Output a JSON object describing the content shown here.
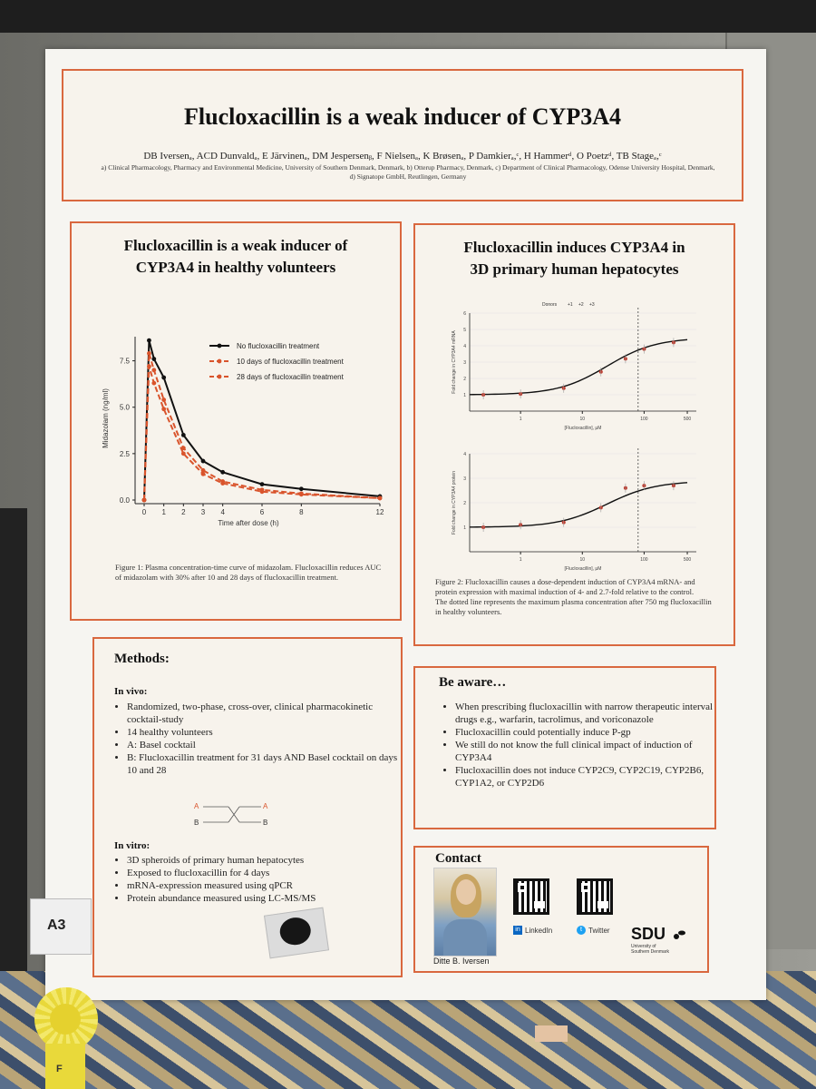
{
  "badge_text": "A3",
  "rosette_text": "F",
  "poster": {
    "title": "Flucloxacillin is a weak inducer of  CYP3A4",
    "authors": "DB Iversenₐ, ACD Dunvaldₐ, E Järvinenₐ, DM Jespersenᵦ, F Nielsenₐ, K Brøsenₐ, P Damkierₐ,ᶜ, H Hammerᵈ, O Poetzᵈ, TB Stageₐ,ᶜ",
    "affiliations": "a) Clinical Pharmacology, Pharmacy and Environmental Medicine, University of Southern Denmark, Denmark, b) Otterup Pharmacy, Denmark, c) Department of Clinical Pharmacology, Odense University Hospital, Denmark, d) Signatope GmbH, Reutlingen, Germany",
    "box1": {
      "heading_line1": "Flucloxacillin is a weak inducer of",
      "heading_line2": "CYP3A4 in healthy volunteers",
      "caption": "Figure 1: Plasma concentration-time curve of midazolam. Flucloxacillin reduces AUC of midazolam with 30% after 10 and 28 days of flucloxacillin treatment."
    },
    "box2": {
      "heading_line1": "Flucloxacillin induces CYP3A4 in",
      "heading_line2": "3D primary human hepatocytes",
      "caption_line1": "Figure 2: Flucloxacillin causes a dose-dependent induction of CYP3A4 mRNA- and protein expression with maximal induction of 4- and 2.7-fold relative to the control.",
      "caption_line2": "The dotted line represents the maximum plasma concentration after 750 mg flucloxacillin in healthy volunteers."
    },
    "methods": {
      "title": "Methods:",
      "invivo_title": "In vivo:",
      "invivo_items": [
        "Randomized, two-phase, cross-over, clinical pharmacokinetic cocktail-study",
        "14 healthy volunteers",
        "A: Basel cocktail",
        "B: Flucloxacillin treatment for 31 days AND Basel cocktail on days 10 and 28"
      ],
      "crossover_labels": {
        "a_left": "A",
        "b_left": "B",
        "a_right": "A",
        "b_right": "B"
      },
      "invitro_title": "In vitro:",
      "invitro_items": [
        "3D spheroids of primary human hepatocytes",
        "Exposed to flucloxacillin for 4 days",
        "mRNA-expression measured using qPCR",
        "Protein abundance measured using LC-MS/MS"
      ]
    },
    "aware": {
      "title": "Be aware…",
      "items": [
        "When prescribing flucloxacillin with narrow therapeutic interval drugs e.g., warfarin, tacrolimus, and voriconazole",
        "Flucloxacillin could potentially induce P-gp",
        "We still do not know the full clinical impact of induction of  CYP3A4",
        "Flucloxacillin does not induce CYP2C9, CYP2C19, CYP2B6, CYP1A2, or CYP2D6"
      ]
    },
    "contact": {
      "title": "Contact",
      "name": "Ditte B. Iversen",
      "linkedin": "LinkedIn",
      "twitter": "Twitter",
      "sdu_logo": "SDU",
      "sdu_sub1": "University of",
      "sdu_sub2": "Southern Denmark"
    }
  },
  "chart_data": [
    {
      "type": "line",
      "xlabel": "Time after dose (h)",
      "ylabel": "Midazolam (ng/ml)",
      "xticks": [
        "0",
        "1",
        "2",
        "3",
        "4",
        "6",
        "8",
        "12"
      ],
      "yticks": [
        "0.0",
        "2.5",
        "5.0",
        "7.5"
      ],
      "xlim": [
        0,
        12
      ],
      "ylim": [
        0,
        8.8
      ],
      "legend_position": "top-right",
      "series": [
        {
          "name": "No flucloxacillin treatment",
          "color": "#111111",
          "style": "solid",
          "x": [
            0,
            0.25,
            0.5,
            1,
            2,
            3,
            4,
            6,
            8,
            12
          ],
          "y": [
            0,
            8.6,
            7.6,
            6.6,
            3.5,
            2.1,
            1.5,
            0.85,
            0.6,
            0.2
          ]
        },
        {
          "name": "10 days of flucloxacillin treatment",
          "color": "#d9542c",
          "style": "dashed",
          "x": [
            0,
            0.25,
            0.5,
            1,
            2,
            3,
            4,
            6,
            8,
            12
          ],
          "y": [
            0,
            7.9,
            7.0,
            5.4,
            2.8,
            1.6,
            1.0,
            0.55,
            0.35,
            0.1
          ]
        },
        {
          "name": "28 days of flucloxacillin treatment",
          "color": "#d9542c",
          "style": "dashed",
          "x": [
            0,
            0.25,
            0.5,
            1,
            2,
            3,
            4,
            6,
            8,
            12
          ],
          "y": [
            0,
            7.2,
            6.3,
            4.9,
            2.5,
            1.4,
            0.9,
            0.45,
            0.3,
            0.1
          ]
        }
      ]
    },
    {
      "type": "scatter",
      "xlabel": "[Flucloxacillin], µM",
      "ylabel": "Fold change in CYP3A4 mRNA",
      "scale_x": "log",
      "xticks": [
        "1",
        "10",
        "100",
        "500"
      ],
      "yticks": [
        "1",
        "2",
        "3",
        "4",
        "5",
        "6"
      ],
      "ylim": [
        0,
        6
      ],
      "legend_title": "Donors",
      "legend_items": [
        "+1",
        "+2",
        "+3"
      ],
      "x": [
        0.25,
        1,
        5,
        20,
        50,
        100,
        300
      ],
      "y": [
        1.0,
        1.05,
        1.4,
        2.4,
        3.2,
        3.8,
        4.2
      ],
      "fit": "sigmoid",
      "cmax_line_x": 80
    },
    {
      "type": "scatter",
      "xlabel": "[Flucloxacillin], µM",
      "ylabel": "Fold change in CYP3A4 protein",
      "scale_x": "log",
      "xticks": [
        "1",
        "10",
        "100",
        "500"
      ],
      "yticks": [
        "1",
        "2",
        "3",
        "4"
      ],
      "ylim": [
        0,
        4
      ],
      "x": [
        0.25,
        1,
        5,
        20,
        50,
        100,
        300
      ],
      "y": [
        1.0,
        1.1,
        1.2,
        1.8,
        2.6,
        2.7,
        2.7
      ],
      "fit": "sigmoid",
      "cmax_line_x": 80
    }
  ]
}
